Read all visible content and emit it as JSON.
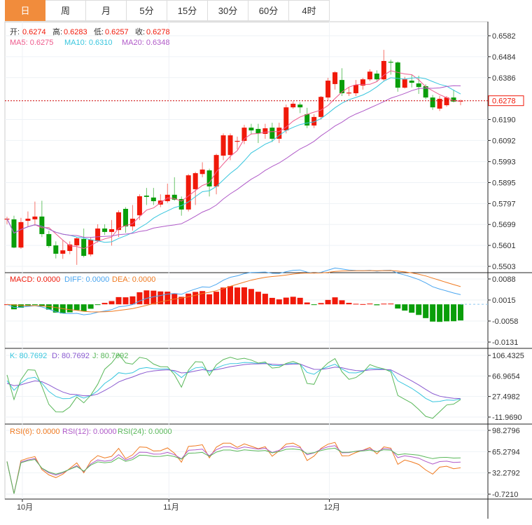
{
  "tabs": [
    {
      "label": "日",
      "active": true
    },
    {
      "label": "周"
    },
    {
      "label": "月"
    },
    {
      "label": "5分"
    },
    {
      "label": "15分"
    },
    {
      "label": "30分"
    },
    {
      "label": "60分"
    },
    {
      "label": "4时"
    }
  ],
  "legend": {
    "open_label": "开:",
    "open": "0.6274",
    "high_label": "高:",
    "high": "0.6283",
    "low_label": "低:",
    "low": "0.6257",
    "close_label": "收:",
    "close": "0.6278",
    "ma5": "MA5: 0.6275",
    "ma10": "MA10: 0.6310",
    "ma20": "MA20: 0.6348",
    "macd": "MACD: 0.0000",
    "diff": "DIFF: 0.0000",
    "dea": "DEA: 0.0000",
    "k": "K: 80.7692",
    "d": "D: 80.7692",
    "j": "J: 80.7692",
    "rsi6": "RSI(6): 0.0000",
    "rsi12": "RSI(12): 0.0000",
    "rsi24": "RSI(24): 0.0000"
  },
  "colors": {
    "up": "#f0190a",
    "down": "#0a9e0a",
    "ma5": "#ee5a8c",
    "ma10": "#38c6de",
    "ma20": "#b05ac8",
    "diff": "#4aa6f0",
    "dea": "#f07a20",
    "k": "#38c6de",
    "d": "#8a5ad0",
    "j": "#5ab85a",
    "rsi6": "#f07a20",
    "rsi12": "#b05ac8",
    "rsi24": "#5ab85a"
  },
  "chart_data": {
    "type": "candlestick",
    "current_price": "0.6278",
    "x_labels": [
      {
        "label": "10月",
        "index": 2
      },
      {
        "label": "11月",
        "index": 23
      },
      {
        "label": "12月",
        "index": 46
      }
    ],
    "main_axis": {
      "ticks": [
        "0.6582",
        "0.6484",
        "0.6386",
        "0.6190",
        "0.6092",
        "0.5993",
        "0.5895",
        "0.5797",
        "0.5699",
        "0.5601",
        "0.5503"
      ],
      "range": [
        0.5503,
        0.6582
      ]
    },
    "macd_axis": {
      "ticks": [
        "0.0088",
        "0.0015",
        "-0.0058",
        "-0.0131"
      ],
      "range": [
        -0.0131,
        0.0088
      ]
    },
    "kdj_axis": {
      "ticks": [
        "106.4325",
        "66.9654",
        "27.4982",
        "-11.9690"
      ],
      "range": [
        -11.969,
        106.4325
      ]
    },
    "rsi_axis": {
      "ticks": [
        "98.2796",
        "65.2794",
        "32.2792",
        "-0.7210"
      ],
      "range": [
        -0.721,
        98.2796
      ]
    },
    "ohlc": [
      [
        0.5726,
        0.5726,
        0.5735,
        0.57
      ],
      [
        0.5723,
        0.5591,
        0.574,
        0.5588
      ],
      [
        0.5591,
        0.571,
        0.573,
        0.5585
      ],
      [
        0.5716,
        0.5726,
        0.576,
        0.569
      ],
      [
        0.5723,
        0.5736,
        0.5806,
        0.5693
      ],
      [
        0.5736,
        0.5654,
        0.581,
        0.564
      ],
      [
        0.5654,
        0.5598,
        0.567,
        0.559
      ],
      [
        0.5601,
        0.5562,
        0.562,
        0.554
      ],
      [
        0.5562,
        0.5578,
        0.5625,
        0.5538
      ],
      [
        0.5575,
        0.5605,
        0.562,
        0.556
      ],
      [
        0.5601,
        0.5634,
        0.564,
        0.551
      ],
      [
        0.5631,
        0.5552,
        0.568,
        0.5545
      ],
      [
        0.5559,
        0.5628,
        0.564,
        0.555
      ],
      [
        0.5621,
        0.568,
        0.57,
        0.5615
      ],
      [
        0.568,
        0.5664,
        0.57,
        0.565
      ],
      [
        0.5664,
        0.5677,
        0.572,
        0.56
      ],
      [
        0.5673,
        0.5756,
        0.5765,
        0.564
      ],
      [
        0.5772,
        0.569,
        0.578,
        0.566
      ],
      [
        0.569,
        0.5726,
        0.579,
        0.567
      ],
      [
        0.5742,
        0.5831,
        0.584,
        0.572
      ],
      [
        0.5834,
        0.5828,
        0.587,
        0.579
      ],
      [
        0.5825,
        0.5808,
        0.587,
        0.579
      ],
      [
        0.5792,
        0.5811,
        0.584,
        0.578
      ],
      [
        0.5808,
        0.5838,
        0.589,
        0.58
      ],
      [
        0.5838,
        0.5815,
        0.592,
        0.581
      ],
      [
        0.5818,
        0.5769,
        0.583,
        0.574
      ],
      [
        0.5769,
        0.5929,
        0.5935,
        0.576
      ],
      [
        0.5864,
        0.5939,
        0.5945,
        0.579
      ],
      [
        0.5935,
        0.5956,
        0.599,
        0.592
      ],
      [
        0.5952,
        0.5877,
        0.596,
        0.583
      ],
      [
        0.5877,
        0.6024,
        0.603,
        0.584
      ],
      [
        0.6021,
        0.6116,
        0.6125,
        0.6
      ],
      [
        0.6024,
        0.6116,
        0.6125,
        0.6
      ],
      [
        0.609,
        0.609,
        0.611,
        0.605
      ],
      [
        0.609,
        0.6152,
        0.6165,
        0.6075
      ],
      [
        0.6152,
        0.6139,
        0.617,
        0.612
      ],
      [
        0.6146,
        0.6126,
        0.617,
        0.608
      ],
      [
        0.6123,
        0.6149,
        0.617,
        0.61
      ],
      [
        0.6152,
        0.61,
        0.6175,
        0.6085
      ],
      [
        0.61,
        0.6152,
        0.6175,
        0.608
      ],
      [
        0.6139,
        0.6247,
        0.626,
        0.6125
      ],
      [
        0.6247,
        0.6264,
        0.6275,
        0.624
      ],
      [
        0.626,
        0.6247,
        0.627,
        0.622
      ],
      [
        0.6215,
        0.6162,
        0.6245,
        0.615
      ],
      [
        0.6162,
        0.6202,
        0.6215,
        0.615
      ],
      [
        0.6202,
        0.6296,
        0.63,
        0.619
      ],
      [
        0.6293,
        0.6372,
        0.6385,
        0.628
      ],
      [
        0.6356,
        0.6411,
        0.6416,
        0.633
      ],
      [
        0.6375,
        0.6313,
        0.643,
        0.63
      ],
      [
        0.6316,
        0.6316,
        0.634,
        0.63
      ],
      [
        0.6313,
        0.6352,
        0.6375,
        0.63
      ],
      [
        0.6349,
        0.6378,
        0.6385,
        0.633
      ],
      [
        0.6378,
        0.6414,
        0.6425,
        0.637
      ],
      [
        0.6405,
        0.6378,
        0.642,
        0.637
      ],
      [
        0.6378,
        0.6464,
        0.6516,
        0.637
      ],
      [
        0.646,
        0.6457,
        0.647,
        0.64
      ],
      [
        0.6457,
        0.6339,
        0.6462,
        0.632
      ],
      [
        0.6339,
        0.6378,
        0.639,
        0.6335
      ],
      [
        0.6372,
        0.6362,
        0.64,
        0.634
      ],
      [
        0.6359,
        0.6342,
        0.6395,
        0.631
      ],
      [
        0.6346,
        0.6293,
        0.6355,
        0.6285
      ],
      [
        0.6293,
        0.6247,
        0.6305,
        0.6235
      ],
      [
        0.6241,
        0.6287,
        0.63,
        0.623
      ],
      [
        0.6257,
        0.6293,
        0.63,
        0.625
      ],
      [
        0.6293,
        0.6274,
        0.633,
        0.627
      ],
      [
        0.6274,
        0.6278,
        0.6283,
        0.6257
      ]
    ]
  }
}
